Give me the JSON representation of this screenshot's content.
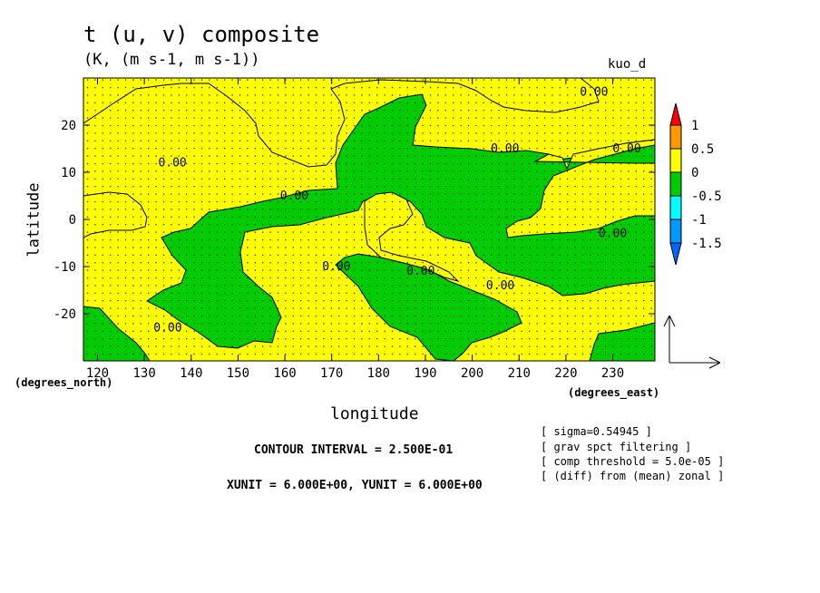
{
  "title": "t (u, v) composite",
  "units": "(K, (m s-1, m s-1))",
  "experiment": "kuo_d",
  "footer": {
    "contour_interval": "CONTOUR INTERVAL = 2.500E-01",
    "vector_units": "XUNIT = 6.000E+00, YUNIT = 6.000E+00"
  },
  "notes": [
    "[ sigma=0.54945 ]",
    "[ grav spct filtering ]",
    "[ comp threshold = 5.0e-05 ]",
    "[ (diff) from (mean) zonal ]"
  ],
  "colors": {
    "yellow": "#ffff00",
    "green": "#00cc00",
    "orange": "#ff9900",
    "red": "#ff0000",
    "cyan": "#00ffff",
    "blue": "#0099ff",
    "darkblue": "#0066ff"
  },
  "chart_data": {
    "type": "contour",
    "title": "t (u, v) composite",
    "xlabel": "longitude",
    "ylabel": "latitude",
    "xunits": "(degrees_east)",
    "yunits": "(degrees_north)",
    "xlim": [
      117,
      239
    ],
    "ylim": [
      -30,
      30
    ],
    "x_ticks": [
      120,
      130,
      140,
      150,
      160,
      170,
      180,
      190,
      200,
      210,
      220,
      230
    ],
    "y_ticks": [
      -20,
      -10,
      0,
      10,
      20
    ],
    "contour_labels": [
      {
        "text": "0.00",
        "x": 136,
        "y": 12
      },
      {
        "text": "0.00",
        "x": 162,
        "y": 5
      },
      {
        "text": "0.00",
        "x": 207,
        "y": 15
      },
      {
        "text": "0.00",
        "x": 226,
        "y": 27
      },
      {
        "text": "0.00",
        "x": 233,
        "y": 15
      },
      {
        "text": "0.00",
        "x": 230,
        "y": -3
      },
      {
        "text": "0.00",
        "x": 171,
        "y": -10
      },
      {
        "text": "0.00",
        "x": 189,
        "y": -11
      },
      {
        "text": "0.00",
        "x": 206,
        "y": -14
      },
      {
        "text": "0.00",
        "x": 135,
        "y": -23
      }
    ],
    "colorbar": {
      "levels": [
        "1",
        "0.5",
        "0",
        "-0.5",
        "-1",
        "-1.5"
      ]
    }
  }
}
